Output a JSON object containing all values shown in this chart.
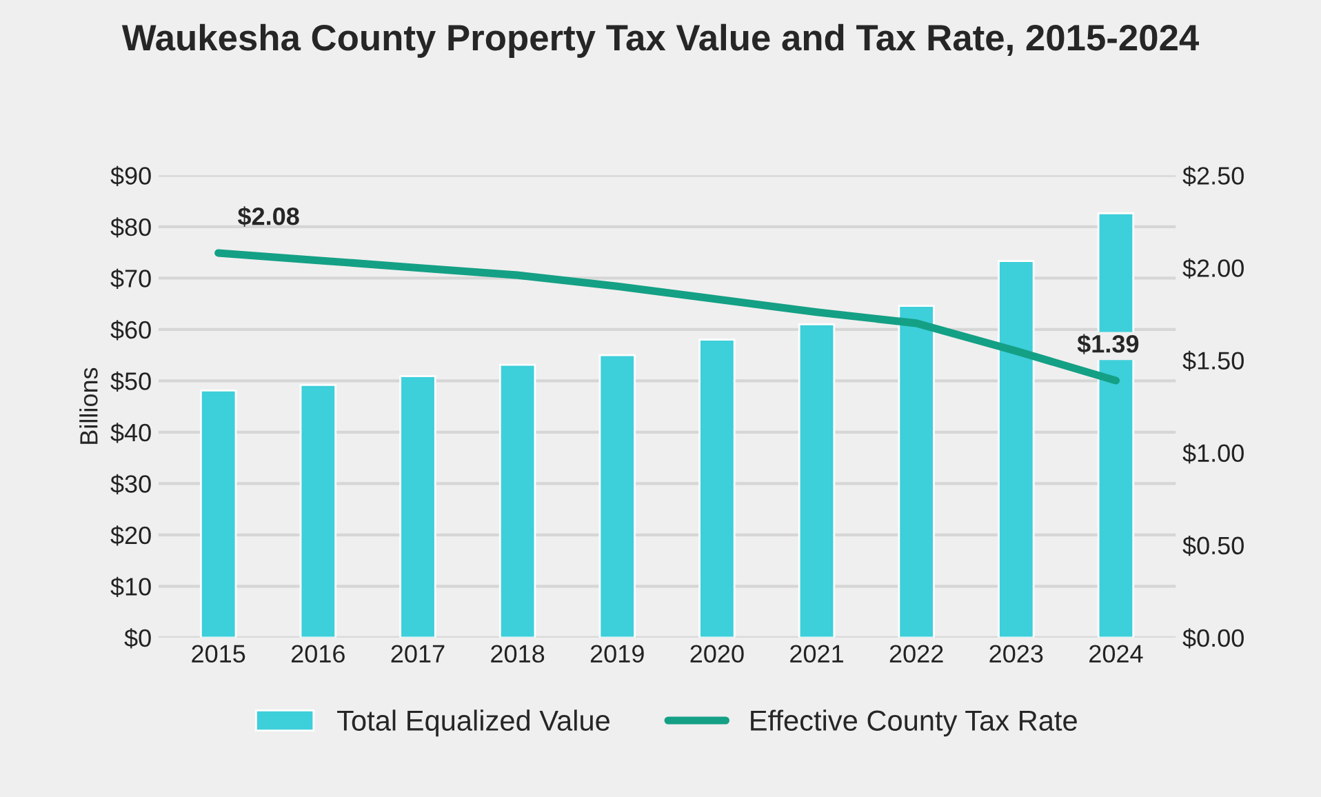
{
  "chart_data": {
    "type": "bar",
    "title": "Waukesha County Property Tax Value and Tax Rate, 2015-2024",
    "ylabel": "Billions",
    "categories": [
      "2015",
      "2016",
      "2017",
      "2018",
      "2019",
      "2020",
      "2021",
      "2022",
      "2023",
      "2024"
    ],
    "series": [
      {
        "name": "Total Equalized Value",
        "color": "#3dcfda",
        "values": [
          48.1,
          49.2,
          50.9,
          53.1,
          55.0,
          58.0,
          61.0,
          64.6,
          73.3,
          82.6
        ]
      },
      {
        "name": "Effective County Tax Rate",
        "type": "line",
        "axis": "y2",
        "color": "#14a085",
        "values": [
          2.08,
          2.04,
          2.0,
          1.96,
          1.9,
          1.83,
          1.76,
          1.7,
          1.55,
          1.39
        ],
        "value_labels": [
          "$2.08",
          null,
          null,
          null,
          null,
          null,
          null,
          null,
          null,
          "$1.39"
        ]
      }
    ],
    "ylim": [
      0,
      90
    ],
    "yticks": [
      {
        "value": 0,
        "label": "$0"
      },
      {
        "value": 10,
        "label": "$10"
      },
      {
        "value": 20,
        "label": "$20"
      },
      {
        "value": 30,
        "label": "$30"
      },
      {
        "value": 40,
        "label": "$40"
      },
      {
        "value": 50,
        "label": "$50"
      },
      {
        "value": 60,
        "label": "$60"
      },
      {
        "value": 70,
        "label": "$70"
      },
      {
        "value": 80,
        "label": "$80"
      },
      {
        "value": 90,
        "label": "$90"
      }
    ],
    "y2lim": [
      0,
      2.5
    ],
    "y2ticks": [
      {
        "value": 0,
        "label": "$0.00"
      },
      {
        "value": 0.5,
        "label": "$0.50"
      },
      {
        "value": 1.0,
        "label": "$1.00"
      },
      {
        "value": 1.5,
        "label": "$1.50"
      },
      {
        "value": 2.0,
        "label": "$2.00"
      },
      {
        "value": 2.5,
        "label": "$2.50"
      }
    ],
    "grid": "y",
    "legend": "bottom"
  }
}
